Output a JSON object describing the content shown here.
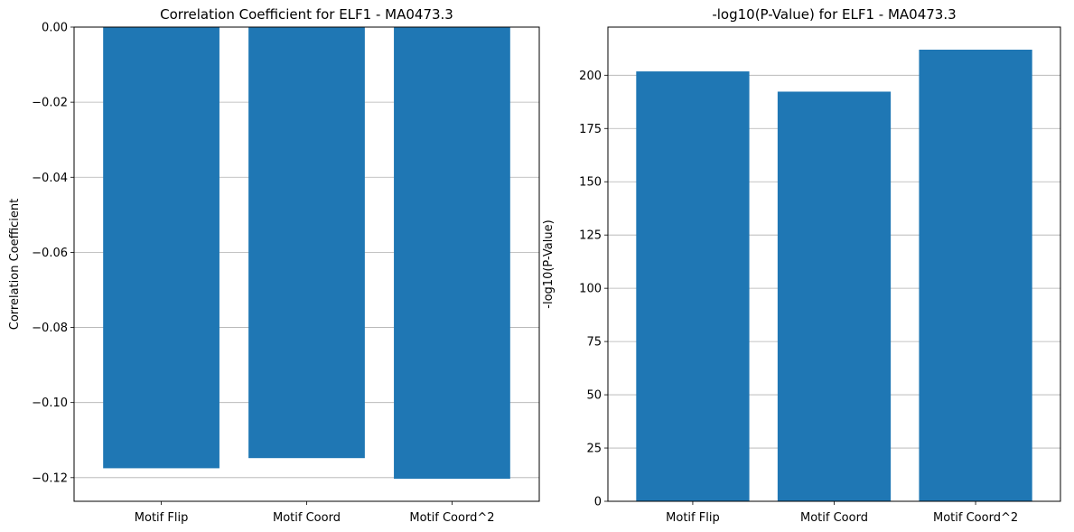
{
  "chart_data": [
    {
      "type": "bar",
      "title": "Correlation Coefficient for ELF1 - MA0473.3",
      "xlabel": "",
      "ylabel": "Correlation Coefficient",
      "categories": [
        "Motif Flip",
        "Motif Coord",
        "Motif Coord^2"
      ],
      "values": [
        -0.1175,
        -0.1148,
        -0.1203
      ],
      "ylim": [
        -0.1263,
        0.0
      ],
      "yticks": [
        0.0,
        -0.02,
        -0.04,
        -0.06,
        -0.08,
        -0.1,
        -0.12
      ],
      "ytick_labels": [
        "0.00",
        "−0.02",
        "−0.04",
        "−0.06",
        "−0.08",
        "−0.10",
        "−0.12"
      ],
      "grid": "y",
      "bar_color": "#1f77b4"
    },
    {
      "type": "bar",
      "title": "-log10(P-Value) for ELF1 - MA0473.3",
      "xlabel": "",
      "ylabel": "-log10(P-Value)",
      "categories": [
        "Motif Flip",
        "Motif Coord",
        "Motif Coord^2"
      ],
      "values": [
        201.8,
        192.3,
        212.0
      ],
      "ylim": [
        0,
        222.6
      ],
      "yticks": [
        0,
        25,
        50,
        75,
        100,
        125,
        150,
        175,
        200
      ],
      "ytick_labels": [
        "0",
        "25",
        "50",
        "75",
        "100",
        "125",
        "150",
        "175",
        "200"
      ],
      "grid": "y",
      "bar_color": "#1f77b4"
    }
  ]
}
